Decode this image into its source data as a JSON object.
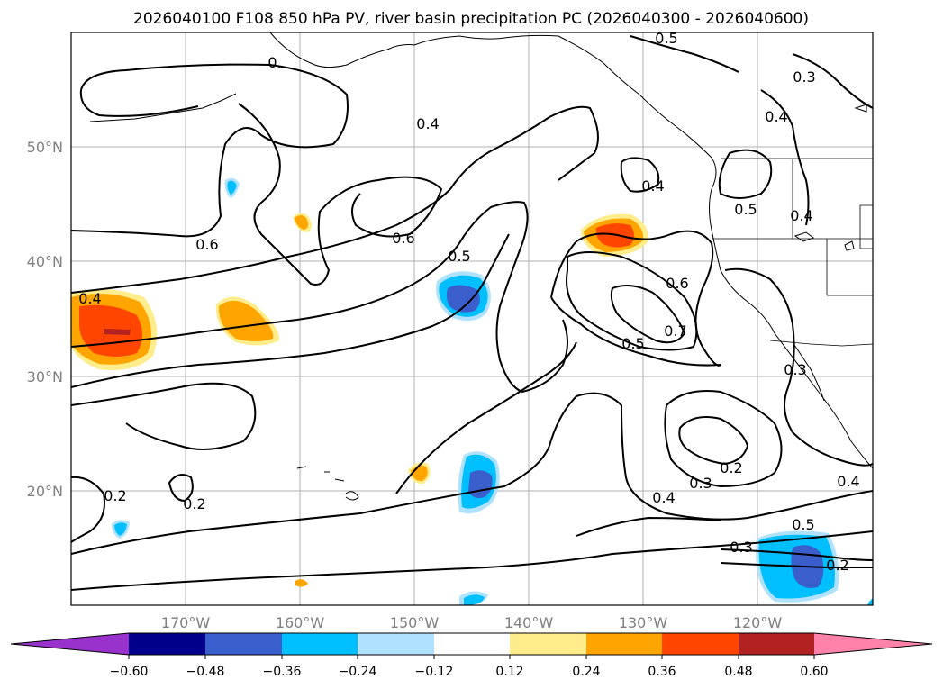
{
  "title": "2026040100 F108 850 hPa PV, river basin precipitation PC (2026040300 - 2026040600)",
  "lat_labels": [
    "50°N",
    "40°N",
    "30°N",
    "20°N"
  ],
  "lon_labels": [
    "170°W",
    "160°W",
    "150°W",
    "140°W",
    "130°W",
    "120°W"
  ],
  "contour_labels": [
    "0.4",
    "0.6",
    "0.6",
    "0.5",
    "0.4",
    "0.5",
    "0.4",
    "0.6",
    "0.7",
    "0.5",
    "0.3",
    "0.3",
    "0.4",
    "0.2",
    "0.3",
    "0.4",
    "0.2",
    "0.2",
    "0.4",
    "0.5",
    "0.3",
    "0.2",
    "0.5",
    "0.4",
    "0."
  ],
  "colorbar": {
    "colors": [
      "#9932cc",
      "#00008b",
      "#3a5fcd",
      "#00bfff",
      "#b0e2ff",
      "#ffffff",
      "#ffec8b",
      "#ffa500",
      "#ff4500",
      "#b22222",
      "#ff82ab"
    ],
    "tick_labels": [
      "−0.60",
      "−0.48",
      "−0.36",
      "−0.24",
      "−0.12",
      "0.12",
      "0.24",
      "0.36",
      "0.48",
      "0.60"
    ]
  }
}
